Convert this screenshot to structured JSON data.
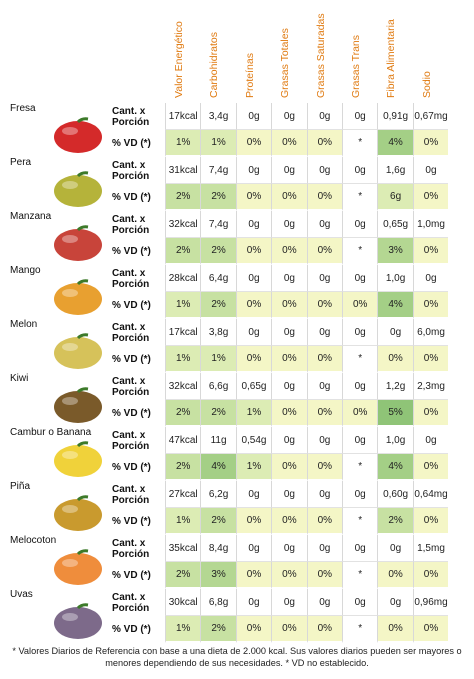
{
  "header": {
    "columns": [
      "Valor Energético",
      "Carbohidratos",
      "Proteínas",
      "Grasas Totales",
      "Grasas Saturadas",
      "Grasas Trans",
      "Fibra Alimentaria",
      "Sodio"
    ]
  },
  "row_labels": {
    "quantity": "Cant. x Porción",
    "daily_value": "% VD (*)"
  },
  "fruits": [
    {
      "name": "Fresa",
      "quantity": [
        "17kcal",
        "3,4g",
        "0g",
        "0g",
        "0g",
        "0g",
        "0,91g",
        "0,67mg"
      ],
      "daily_value": [
        "1%",
        "1%",
        "0%",
        "0%",
        "0%",
        "*",
        "4%",
        "0%"
      ]
    },
    {
      "name": "Pera",
      "quantity": [
        "31kcal",
        "7,4g",
        "0g",
        "0g",
        "0g",
        "0g",
        "1,6g",
        "0g"
      ],
      "daily_value": [
        "2%",
        "2%",
        "0%",
        "0%",
        "0%",
        "*",
        "6g",
        "0%"
      ]
    },
    {
      "name": "Manzana",
      "quantity": [
        "32kcal",
        "7,4g",
        "0g",
        "0g",
        "0g",
        "0g",
        "0,65g",
        "1,0mg"
      ],
      "daily_value": [
        "2%",
        "2%",
        "0%",
        "0%",
        "0%",
        "*",
        "3%",
        "0%"
      ]
    },
    {
      "name": "Mango",
      "quantity": [
        "28kcal",
        "6,4g",
        "0g",
        "0g",
        "0g",
        "0g",
        "1,0g",
        "0g"
      ],
      "daily_value": [
        "1%",
        "2%",
        "0%",
        "0%",
        "0%",
        "0%",
        "4%",
        "0%"
      ]
    },
    {
      "name": "Melon",
      "quantity": [
        "17kcal",
        "3,8g",
        "0g",
        "0g",
        "0g",
        "0g",
        "0g",
        "6,0mg"
      ],
      "daily_value": [
        "1%",
        "1%",
        "0%",
        "0%",
        "0%",
        "*",
        "0%",
        "0%"
      ]
    },
    {
      "name": "Kiwi",
      "quantity": [
        "32kcal",
        "6,6g",
        "0,65g",
        "0g",
        "0g",
        "0g",
        "1,2g",
        "2,3mg"
      ],
      "daily_value": [
        "2%",
        "2%",
        "1%",
        "0%",
        "0%",
        "0%",
        "5%",
        "0%"
      ]
    },
    {
      "name": "Cambur o Banana",
      "quantity": [
        "47kcal",
        "11g",
        "0,54g",
        "0g",
        "0g",
        "0g",
        "1,0g",
        "0g"
      ],
      "daily_value": [
        "2%",
        "4%",
        "1%",
        "0%",
        "0%",
        "*",
        "4%",
        "0%"
      ]
    },
    {
      "name": "Piña",
      "quantity": [
        "27kcal",
        "6,2g",
        "0g",
        "0g",
        "0g",
        "0g",
        "0,60g",
        "0,64mg"
      ],
      "daily_value": [
        "1%",
        "2%",
        "0%",
        "0%",
        "0%",
        "*",
        "2%",
        "0%"
      ]
    },
    {
      "name": "Melocoton",
      "quantity": [
        "35kcal",
        "8,4g",
        "0g",
        "0g",
        "0g",
        "0g",
        "0g",
        "1,5mg"
      ],
      "daily_value": [
        "2%",
        "3%",
        "0%",
        "0%",
        "0%",
        "*",
        "0%",
        "0%"
      ]
    },
    {
      "name": "Uvas",
      "quantity": [
        "30kcal",
        "6,8g",
        "0g",
        "0g",
        "0g",
        "0g",
        "0g",
        "0,96mg"
      ],
      "daily_value": [
        "1%",
        "2%",
        "0%",
        "0%",
        "0%",
        "*",
        "0%",
        "0%"
      ]
    }
  ],
  "footnote": "* Valores Diarios de Referencia con base a una dieta de 2.000 kcal. Sus valores diarios pueden ser mayores o menores dependiendo de sus necesidades. * VD no establecido."
}
